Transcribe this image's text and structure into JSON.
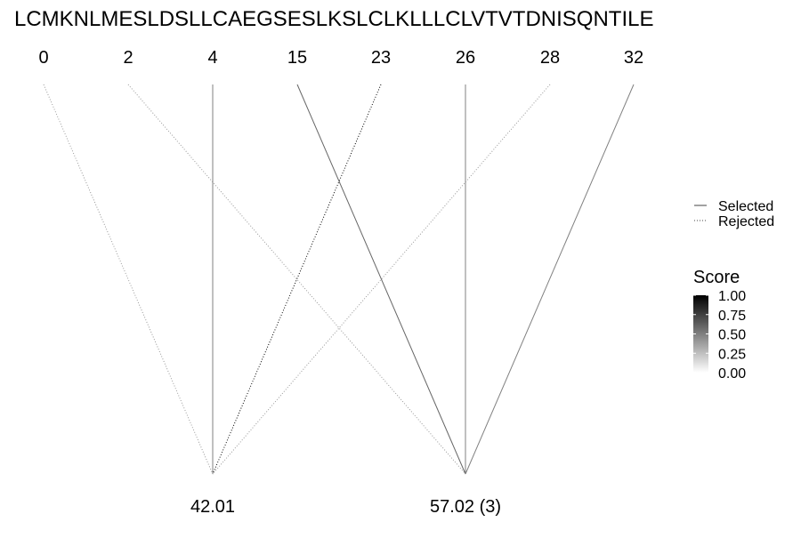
{
  "sequence": "LCMKNLMESLDSLLCAEGSESLKSLCLKLLLCLVTVTDNISQNTILE",
  "top_positions": [
    "0",
    "2",
    "4",
    "15",
    "23",
    "26",
    "28",
    "32"
  ],
  "bottom_nodes": [
    "42.01",
    "57.02 (3)"
  ],
  "connections": [
    {
      "from": 0,
      "to": 0,
      "type": "rejected",
      "score": 0.4
    },
    {
      "from": 1,
      "to": 1,
      "type": "rejected",
      "score": 0.4
    },
    {
      "from": 2,
      "to": 0,
      "type": "selected",
      "score": 0.5
    },
    {
      "from": 3,
      "to": 1,
      "type": "selected",
      "score": 0.6
    },
    {
      "from": 4,
      "to": 0,
      "type": "rejected",
      "score": 1.0
    },
    {
      "from": 5,
      "to": 1,
      "type": "selected",
      "score": 0.5
    },
    {
      "from": 6,
      "to": 0,
      "type": "rejected",
      "score": 0.4
    },
    {
      "from": 7,
      "to": 1,
      "type": "selected",
      "score": 0.5
    }
  ],
  "legend": {
    "line_types": [
      {
        "label": "Selected",
        "style": "solid"
      },
      {
        "label": "Rejected",
        "style": "dotted"
      }
    ],
    "score_title": "Score",
    "score_ticks": [
      "1.00",
      "0.75",
      "0.50",
      "0.25",
      "0.00"
    ],
    "score_colors": {
      "high": "#000000",
      "low": "#ffffff"
    }
  }
}
